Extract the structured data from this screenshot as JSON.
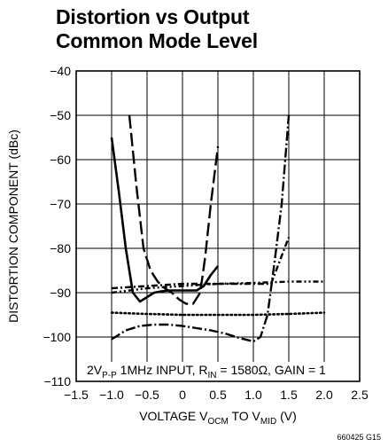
{
  "title_lines": [
    "Distortion vs Output",
    "Common Mode Level"
  ],
  "figure_id": "660425 G15",
  "chart_data": {
    "type": "line",
    "title": "Distortion vs Output Common Mode Level",
    "xlabel": "VOLTAGE V",
    "xlabel_sub1": "OCM",
    "xlabel_mid": " TO V",
    "xlabel_sub2": "MID",
    "xlabel_end": " (V)",
    "ylabel": "DISTORTION COMPONENT (dBc)",
    "xlim": [
      -1.5,
      2.5
    ],
    "ylim": [
      -110,
      -40
    ],
    "x_ticks": [
      -1.5,
      -1.0,
      -0.5,
      0,
      0.5,
      1.0,
      1.5,
      2.0,
      2.5
    ],
    "x_tick_labels": [
      "−1.5",
      "−1.0",
      "−0.5",
      "0",
      "0.5",
      "1.0",
      "1.5",
      "2.0",
      "2.5"
    ],
    "y_ticks": [
      -40,
      -50,
      -60,
      -70,
      -80,
      -90,
      -100,
      -110
    ],
    "y_tick_labels": [
      "−40",
      "−50",
      "−60",
      "−70",
      "−80",
      "−90",
      "−100",
      "−110"
    ],
    "grid": true,
    "annotation": {
      "a": "2V",
      "a_sub": "P-P",
      "b": " 1MHz INPUT, R",
      "b_sub": "IN",
      "c": " = 1580Ω, GAIN = 1"
    },
    "series": [
      {
        "style": "solid",
        "x": [
          -1.0,
          -0.9,
          -0.8,
          -0.7,
          -0.6,
          -0.5,
          -0.4,
          -0.3,
          -0.2,
          -0.1,
          0.0,
          0.1,
          0.2,
          0.3,
          0.4,
          0.5
        ],
        "y": [
          -55,
          -67,
          -80,
          -90,
          -92,
          -91,
          -90,
          -89.7,
          -89.5,
          -89.5,
          -89.5,
          -89.5,
          -89.5,
          -88.5,
          -86,
          -84
        ]
      },
      {
        "style": "long-dash",
        "x": [
          -0.75,
          -0.65,
          -0.55,
          -0.45,
          -0.35,
          -0.25,
          -0.15,
          -0.05,
          0.05,
          0.15,
          0.25,
          0.32,
          0.4,
          0.5
        ],
        "y": [
          -50,
          -66,
          -80,
          -85,
          -87.5,
          -89,
          -90,
          -91.5,
          -92.5,
          -92.5,
          -90,
          -82,
          -70,
          -57
        ]
      },
      {
        "style": "dash-dot",
        "x": [
          -1.0,
          -0.5,
          0.0,
          0.5,
          1.0,
          1.25,
          1.5
        ],
        "y": [
          -89,
          -88.5,
          -88,
          -88,
          -88,
          -88,
          -77.5
        ]
      },
      {
        "style": "dash-dot-dot",
        "x": [
          -1.0,
          -0.5,
          0.0,
          0.5,
          1.0,
          1.5,
          2.0
        ],
        "y": [
          -90,
          -89,
          -88.5,
          -88,
          -87.8,
          -87.5,
          -87.5
        ]
      },
      {
        "style": "dotted",
        "x": [
          -1.0,
          -0.5,
          0.0,
          0.5,
          1.0,
          1.5,
          2.0
        ],
        "y": [
          -94.5,
          -94.8,
          -95,
          -95,
          -95,
          -94.8,
          -94.5
        ]
      },
      {
        "style": "long-dash-dot",
        "x": [
          -1.0,
          -0.8,
          -0.6,
          -0.4,
          -0.2,
          0.0,
          0.2,
          0.4,
          0.6,
          0.8,
          1.0,
          1.1,
          1.2,
          1.3,
          1.4,
          1.5
        ],
        "y": [
          -100.5,
          -98.5,
          -97.5,
          -97.2,
          -97.2,
          -97.5,
          -98,
          -98.5,
          -99.2,
          -100.2,
          -101,
          -100,
          -95,
          -83,
          -70,
          -50
        ]
      }
    ]
  }
}
